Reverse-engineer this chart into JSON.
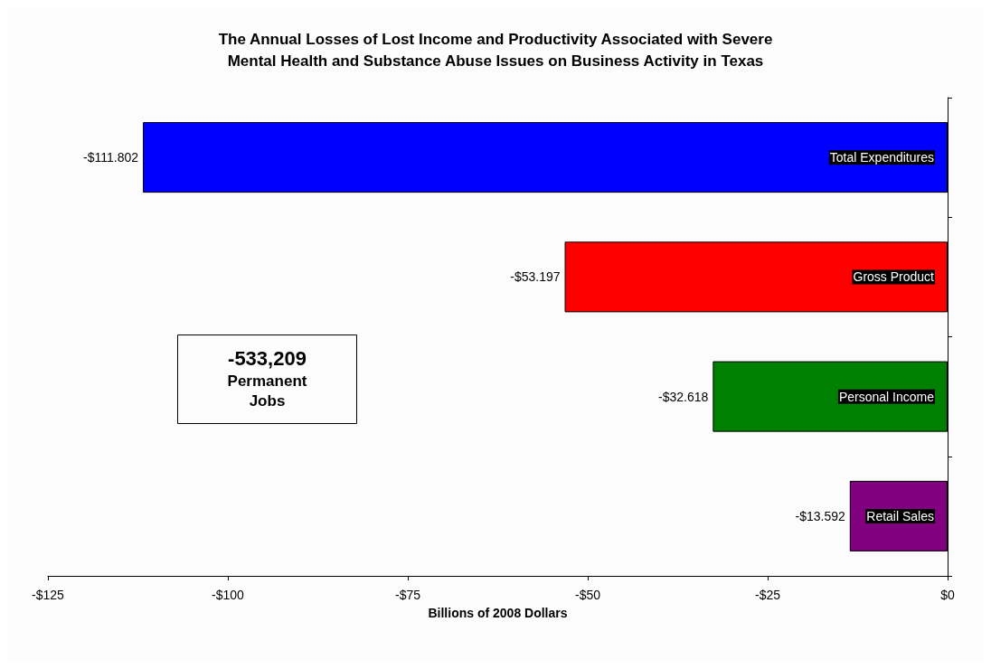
{
  "chart_data": {
    "type": "bar",
    "orientation": "horizontal",
    "title": "The Annual Losses of Lost Income and Productivity Associated with Severe\nMental Health and Substance Abuse Issues on Business Activity in Texas",
    "xlabel": "Billions of 2008 Dollars",
    "categories": [
      "Total Expenditures",
      "Gross Product",
      "Personal Income",
      "Retail Sales"
    ],
    "values": [
      -111.802,
      -53.197,
      -32.618,
      -13.592
    ],
    "colors": [
      "#0000ff",
      "#ff0000",
      "#008000",
      "#800080"
    ],
    "value_labels": [
      "-$111.802",
      "-$53.197",
      "-$32.618",
      "-$13.592"
    ],
    "xlim": [
      -125,
      0
    ],
    "xticks": [
      {
        "value": -125,
        "label": "-$125"
      },
      {
        "value": -100,
        "label": "-$100"
      },
      {
        "value": -75,
        "label": "-$75"
      },
      {
        "value": -50,
        "label": "-$50"
      },
      {
        "value": -25,
        "label": "-$25"
      },
      {
        "value": 0,
        "label": "$0"
      }
    ],
    "annotations": [
      "-533,209 Permanent Jobs"
    ],
    "grid": false
  }
}
